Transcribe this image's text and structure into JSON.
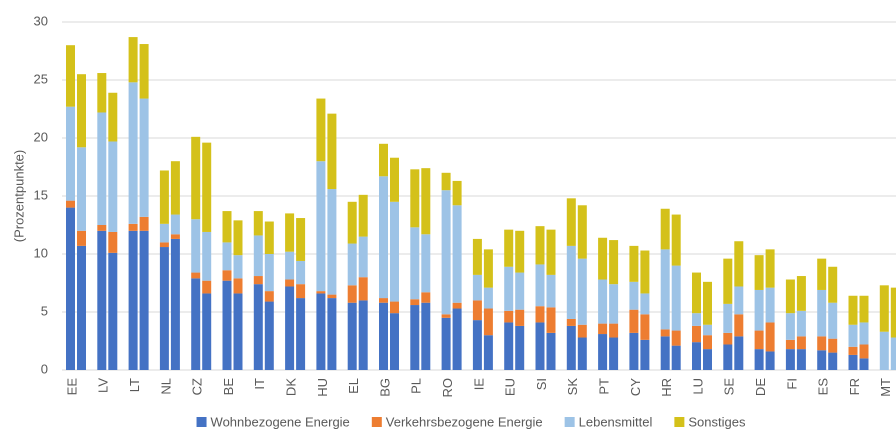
{
  "chart_data": {
    "type": "bar",
    "stacked": true,
    "y_label": "(Prozentpunkte)",
    "categories": [
      "EE",
      null,
      "LV",
      null,
      "LT",
      null,
      "NL",
      null,
      "CZ",
      null,
      "BE",
      null,
      "IT",
      null,
      "DK",
      null,
      "HU",
      null,
      "EL",
      null,
      "BG",
      null,
      "PL",
      null,
      "RO",
      null,
      "IE",
      null,
      "EU",
      null,
      "SI",
      null,
      "SK",
      null,
      "PT",
      null,
      "CY",
      null,
      "HR",
      null,
      "LU",
      null,
      "SE",
      null,
      "DE",
      null,
      "FI",
      null,
      "ES",
      null,
      "FR",
      null,
      "MT",
      null
    ],
    "series": [
      {
        "name": "Wohnbezogene Energie",
        "color": "#4472c4",
        "values": [
          14,
          10.7,
          12,
          10.1,
          12,
          12,
          10.6,
          11.3,
          7.9,
          6.6,
          7.7,
          6.6,
          7.4,
          5.9,
          7.2,
          6.2,
          6.6,
          6.2,
          5.8,
          6.0,
          5.8,
          4.9,
          5.6,
          5.8,
          4.5,
          5.3,
          4.3,
          3.0,
          4.1,
          3.8,
          4.1,
          3.2,
          3.8,
          2.8,
          3.1,
          2.8,
          3.2,
          2.6,
          2.9,
          2.1,
          2.4,
          1.8,
          2.2,
          2.9,
          1.8,
          1.6,
          1.8,
          1.8,
          1.7,
          1.5,
          1.3,
          1.0,
          0,
          0
        ]
      },
      {
        "name": "Verkehrsbezogene Energie",
        "color": "#ed7d31",
        "values": [
          0.6,
          1.3,
          0.5,
          1.8,
          0.6,
          1.2,
          0.4,
          0.4,
          0.5,
          1.1,
          0.9,
          1.3,
          0.7,
          0.9,
          0.6,
          1.2,
          0.2,
          0.3,
          1.5,
          2.0,
          0.4,
          1.0,
          0.5,
          0.9,
          0.3,
          0.5,
          1.7,
          2.3,
          1.0,
          1.4,
          1.4,
          2.2,
          0.6,
          1.1,
          0.9,
          1.2,
          2.0,
          2.2,
          0.6,
          1.3,
          1.4,
          1.2,
          1.0,
          1.9,
          1.6,
          2.5,
          0.8,
          1.1,
          1.2,
          1.2,
          0.7,
          1.2,
          0,
          0
        ]
      },
      {
        "name": "Lebensmittel",
        "color": "#9dc3e6",
        "values": [
          8.1,
          7.2,
          9.7,
          7.8,
          12.2,
          10.2,
          1.6,
          1.7,
          4.6,
          4.2,
          2.4,
          2.0,
          3.5,
          3.2,
          2.4,
          2.0,
          11.2,
          9.1,
          3.6,
          3.5,
          10.5,
          8.6,
          6.2,
          5.0,
          10.7,
          8.4,
          2.2,
          1.8,
          3.8,
          3.2,
          3.6,
          2.8,
          6.3,
          5.7,
          3.8,
          3.4,
          2.4,
          1.8,
          6.9,
          5.6,
          1.1,
          0.9,
          2.5,
          2.4,
          3.5,
          3.0,
          2.3,
          2.2,
          4.0,
          3.1,
          1.9,
          1.9,
          3.3,
          2.8
        ]
      },
      {
        "name": "Sonstiges",
        "color": "#d4c11a",
        "values": [
          5.3,
          6.3,
          3.4,
          4.2,
          3.9,
          4.7,
          4.6,
          4.6,
          7.1,
          7.7,
          2.7,
          3.0,
          2.1,
          2.8,
          3.3,
          3.7,
          5.4,
          6.5,
          3.6,
          3.6,
          2.8,
          3.8,
          5.0,
          5.7,
          1.5,
          2.1,
          3.1,
          3.3,
          3.2,
          3.6,
          3.3,
          3.9,
          4.1,
          4.6,
          3.6,
          3.8,
          3.1,
          3.7,
          3.5,
          4.4,
          3.5,
          3.7,
          3.9,
          3.9,
          3.0,
          3.3,
          2.9,
          3.0,
          2.7,
          3.1,
          2.5,
          2.3,
          4.0,
          4.3
        ]
      }
    ],
    "ylim": [
      0,
      30
    ],
    "yticks": [
      0,
      5,
      10,
      15,
      20,
      25,
      30
    ],
    "grid": true,
    "legend": "bottom"
  }
}
